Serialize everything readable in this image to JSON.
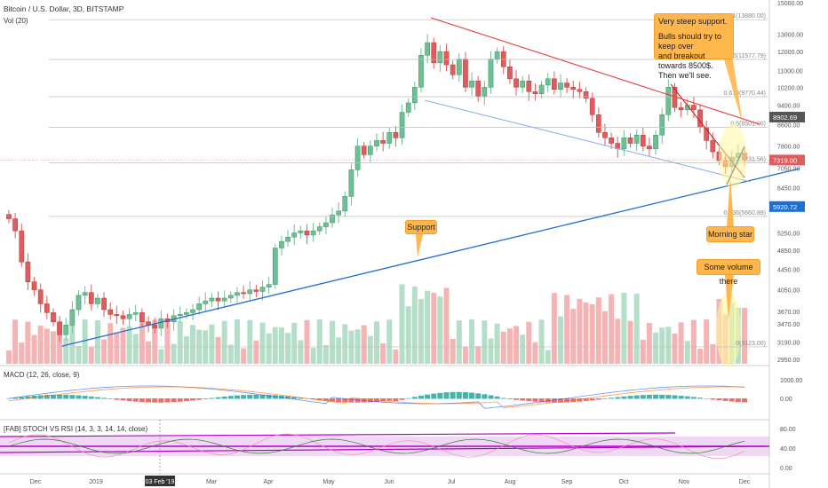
{
  "header": {
    "title": "Bitcoin / U.S. Dollar, 3D, BITSTAMP",
    "volume_label": "Vol (20)"
  },
  "panes": {
    "macd_label": "MACD (12, 26, close, 9)",
    "stoch_label": "[FAB] STOCH VS RSI (14, 3, 3, 14, 14, close)"
  },
  "annotations": {
    "support": "Support",
    "morning_star": "Morning star",
    "volume_note": "Some volume there",
    "steep_title": "Very steep support.",
    "steep_line1": "Bulls should try to keep over",
    "steep_line2": "and breakout towards 8500$.",
    "steep_line3": "Then we'll see."
  },
  "price_badges": {
    "current": "7319.00",
    "upper": "8902.69",
    "lower": "5920.72"
  },
  "colors": {
    "up": "#6fbf94",
    "down": "#e05b5b",
    "vol_up": "#a8d8be",
    "vol_down": "#f3a6a6",
    "resistance": "#e53935",
    "support": "#1e6fd1",
    "channel_low": "#8fb3e6",
    "note": "#ffb74d",
    "stoch_band": "#d9a8e6",
    "stoch_line": "#b200c8"
  },
  "chart_data": {
    "type": "candlestick",
    "title": "Bitcoin / U.S. Dollar, 3D, BITSTAMP",
    "y_axis_ticks": [
      "15000.00",
      "13000.00",
      "12000.00",
      "11000.00",
      "10200.00",
      "9400.00",
      "8600.00",
      "7800.00",
      "7050.00",
      "6450.00",
      "5920.72",
      "5250.00",
      "4850.00",
      "4450.00",
      "4050.00",
      "3670.00",
      "3470.00",
      "3190.00",
      "2950.00"
    ],
    "x_axis_ticks": [
      "Dec",
      "2019",
      "03 Feb '19",
      "Mar",
      "Apr",
      "May",
      "Jun",
      "Jul",
      "Aug",
      "Sep",
      "Oct",
      "Nov",
      "Dec"
    ],
    "fib_levels": [
      {
        "label": "1(13880.00)",
        "value": 13880
      },
      {
        "label": "0.786(11577.79)",
        "value": 11577.79
      },
      {
        "label": "0.618(9770.44)",
        "value": 9770.44
      },
      {
        "label": "0.5(8501.00)",
        "value": 8501
      },
      {
        "label": "0.382(7231.56)",
        "value": 7231.56
      },
      {
        "label": "0.236(5660.89)",
        "value": 5660.89
      },
      {
        "label": "0(3123.00)",
        "value": 3123
      }
    ],
    "macd_ticks": [
      "1000.00",
      "0.00"
    ],
    "stoch_ticks": [
      "80.00",
      "40.00",
      "0.00"
    ],
    "closes": [
      5600,
      5300,
      4600,
      4200,
      4050,
      3800,
      3650,
      3500,
      3300,
      3450,
      3700,
      3950,
      4000,
      3800,
      3900,
      3700,
      3620,
      3600,
      3550,
      3620,
      3650,
      3500,
      3450,
      3400,
      3550,
      3500,
      3600,
      3620,
      3650,
      3700,
      3800,
      3850,
      3900,
      3850,
      3900,
      3950,
      4000,
      3980,
      4050,
      4020,
      4100,
      4150,
      4900,
      5050,
      5150,
      5250,
      5300,
      5200,
      5300,
      5400,
      5500,
      5700,
      5800,
      6200,
      7000,
      7800,
      7500,
      7800,
      8000,
      7900,
      8300,
      8100,
      9100,
      9500,
      10200,
      11800,
      12500,
      11400,
      12000,
      11300,
      10800,
      11600,
      10200,
      10500,
      9800,
      10200,
      11600,
      12000,
      11200,
      10600,
      10200,
      10500,
      10000,
      9900,
      10300,
      10600,
      10100,
      10400,
      10200,
      10100,
      10000,
      9700,
      9000,
      8300,
      8100,
      7900,
      7700,
      8100,
      7900,
      8200,
      7800,
      7700,
      8200,
      9000,
      10200,
      9300,
      9200,
      9400,
      9200,
      8500,
      8000,
      7600,
      7300,
      7100,
      7400,
      7550,
      7319
    ]
  }
}
